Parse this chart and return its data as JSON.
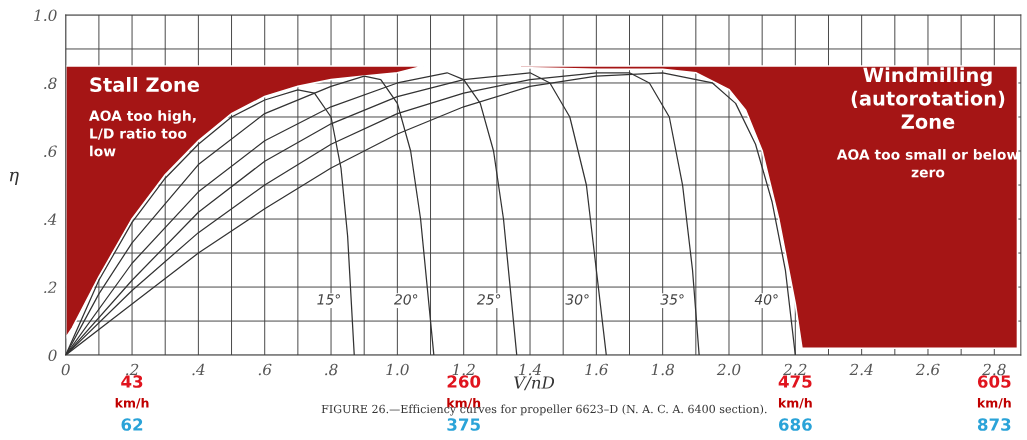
{
  "chart_data": {
    "type": "line",
    "xlabel": "V/nD",
    "ylabel": "η",
    "xlim": [
      0,
      2.88
    ],
    "ylim": [
      0,
      1.0
    ],
    "xticks": [
      {
        "value": 0,
        "label": "0"
      },
      {
        "value": 0.1,
        "label": null
      },
      {
        "value": 0.2,
        "label": ".2"
      },
      {
        "value": 0.3,
        "label": null
      },
      {
        "value": 0.4,
        "label": ".4"
      },
      {
        "value": 0.5,
        "label": null
      },
      {
        "value": 0.6,
        "label": ".6"
      },
      {
        "value": 0.7,
        "label": null
      },
      {
        "value": 0.8,
        "label": ".8"
      },
      {
        "value": 0.9,
        "label": null
      },
      {
        "value": 1.0,
        "label": "1.0"
      },
      {
        "value": 1.1,
        "label": null
      },
      {
        "value": 1.2,
        "label": "1.2"
      },
      {
        "value": 1.3,
        "label": null
      },
      {
        "value": 1.4,
        "label": "1.4"
      },
      {
        "value": 1.5,
        "label": null
      },
      {
        "value": 1.6,
        "label": "1.6"
      },
      {
        "value": 1.7,
        "label": null
      },
      {
        "value": 1.8,
        "label": "1.8"
      },
      {
        "value": 1.9,
        "label": null
      },
      {
        "value": 2.0,
        "label": "2.0"
      },
      {
        "value": 2.1,
        "label": null
      },
      {
        "value": 2.2,
        "label": "2.2"
      },
      {
        "value": 2.3,
        "label": null
      },
      {
        "value": 2.4,
        "label": "2.4"
      },
      {
        "value": 2.5,
        "label": null
      },
      {
        "value": 2.6,
        "label": "2.6"
      },
      {
        "value": 2.7,
        "label": null
      },
      {
        "value": 2.8,
        "label": "2.8"
      }
    ],
    "yticks": [
      {
        "value": 0,
        "label": "0"
      },
      {
        "value": 0.1,
        "label": null
      },
      {
        "value": 0.2,
        "label": ".2"
      },
      {
        "value": 0.3,
        "label": null
      },
      {
        "value": 0.4,
        "label": ".4"
      },
      {
        "value": 0.5,
        "label": null
      },
      {
        "value": 0.6,
        "label": ".6"
      },
      {
        "value": 0.7,
        "label": null
      },
      {
        "value": 0.8,
        "label": ".8"
      },
      {
        "value": 0.9,
        "label": null
      },
      {
        "value": 1.0,
        "label": "1.0"
      }
    ],
    "grid": true,
    "series": [
      {
        "name": "15°",
        "color": "#333333",
        "x": [
          0,
          0.1,
          0.2,
          0.3,
          0.4,
          0.5,
          0.6,
          0.7,
          0.75,
          0.8,
          0.83,
          0.85,
          0.87
        ],
        "values": [
          0,
          0.22,
          0.39,
          0.52,
          0.62,
          0.7,
          0.75,
          0.78,
          0.77,
          0.7,
          0.55,
          0.35,
          0
        ]
      },
      {
        "name": "20°",
        "color": "#333333",
        "x": [
          0,
          0.1,
          0.2,
          0.4,
          0.6,
          0.8,
          0.9,
          0.95,
          1.0,
          1.04,
          1.07,
          1.09,
          1.11
        ],
        "values": [
          0,
          0.18,
          0.33,
          0.56,
          0.71,
          0.79,
          0.82,
          0.81,
          0.74,
          0.6,
          0.4,
          0.2,
          0
        ]
      },
      {
        "name": "25°",
        "color": "#333333",
        "x": [
          0,
          0.2,
          0.4,
          0.6,
          0.8,
          1.0,
          1.15,
          1.2,
          1.25,
          1.29,
          1.32,
          1.34,
          1.36
        ],
        "values": [
          0,
          0.27,
          0.48,
          0.63,
          0.73,
          0.8,
          0.83,
          0.81,
          0.74,
          0.6,
          0.4,
          0.2,
          0
        ]
      },
      {
        "name": "30°",
        "color": "#333333",
        "x": [
          0,
          0.2,
          0.4,
          0.6,
          0.8,
          1.0,
          1.2,
          1.4,
          1.46,
          1.52,
          1.57,
          1.6,
          1.63
        ],
        "values": [
          0,
          0.22,
          0.42,
          0.57,
          0.68,
          0.76,
          0.81,
          0.83,
          0.8,
          0.7,
          0.5,
          0.25,
          0
        ]
      },
      {
        "name": "35°",
        "color": "#333333",
        "x": [
          0,
          0.2,
          0.4,
          0.6,
          0.8,
          1.0,
          1.2,
          1.4,
          1.6,
          1.7,
          1.76,
          1.82,
          1.86,
          1.89,
          1.91
        ],
        "values": [
          0,
          0.19,
          0.36,
          0.5,
          0.62,
          0.71,
          0.77,
          0.81,
          0.83,
          0.83,
          0.8,
          0.7,
          0.5,
          0.25,
          0
        ]
      },
      {
        "name": "40°",
        "color": "#333333",
        "x": [
          0,
          0.2,
          0.4,
          0.6,
          0.8,
          1.0,
          1.2,
          1.4,
          1.6,
          1.8,
          1.95,
          2.02,
          2.08,
          2.13,
          2.17,
          2.2
        ],
        "values": [
          0,
          0.15,
          0.3,
          0.43,
          0.55,
          0.65,
          0.73,
          0.79,
          0.82,
          0.83,
          0.8,
          0.74,
          0.62,
          0.45,
          0.25,
          0
        ]
      }
    ],
    "annotations": [
      "Stall Zone",
      "AOA too high,\nL/D ratio too\nlow",
      "Windmilling\n(autorotation)\nZone",
      "AOA too small or below\nzero",
      "43",
      "km/h",
      "62",
      "260",
      "km/h",
      "375",
      "475",
      "km/h",
      "686",
      "605",
      "km/h",
      "873",
      "FIGURE 26.—Efficiency curves for propeller 6623–D (N. A. C. A. 6400 section)."
    ]
  }
}
